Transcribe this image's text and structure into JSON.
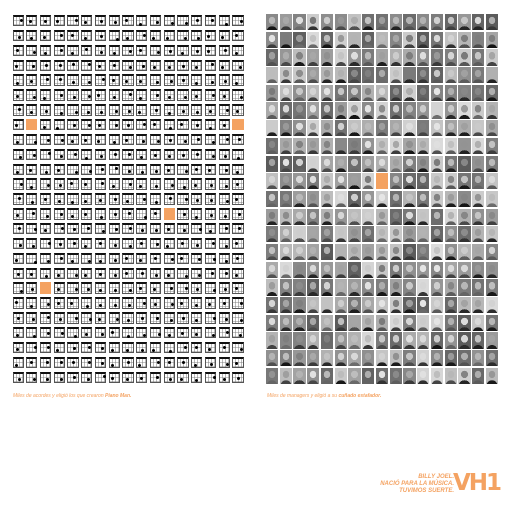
{
  "left_panel": {
    "cell_type": "chord-diagram",
    "highlight_color": "#f4a261"
  },
  "right_panel": {
    "cell_type": "face-portrait",
    "highlight_color": "#f4a261"
  },
  "left_caption": {
    "text": "Miles de acordes y eligió los que crearon ",
    "emphasis": "Piano Man."
  },
  "right_caption": {
    "text": "Miles de managers y eligió a su ",
    "emphasis": "cuñado estafador."
  },
  "tagline": {
    "line1": "Billy Joel.",
    "line2": "Nació para la música.",
    "line3": "Tuvimos suerte."
  },
  "logo": {
    "text": "VH1"
  },
  "colors": {
    "accent": "#f4a261",
    "background": "#ffffff"
  }
}
